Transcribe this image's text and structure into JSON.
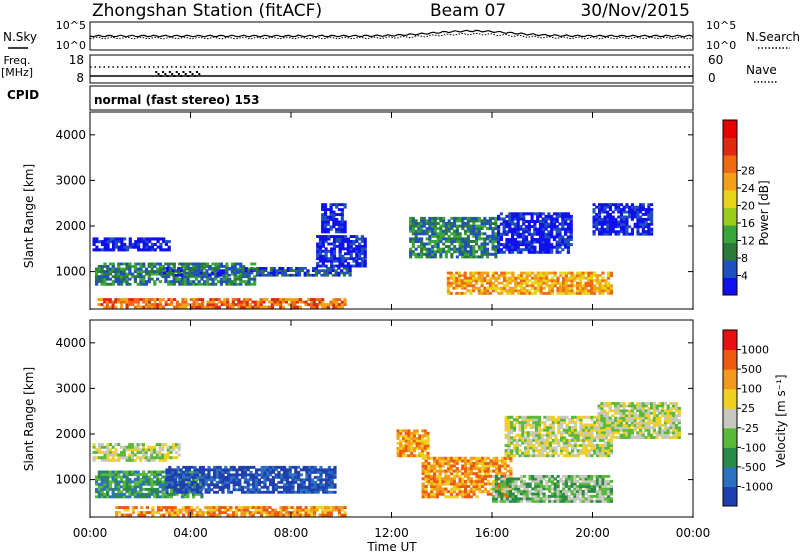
{
  "header": {
    "station_title": "Zhongshan Station (fitACF)",
    "beam_label": "Beam 07",
    "date": "30/Nov/2015"
  },
  "noise_panel": {
    "left_label": "N.Sky",
    "left_ticks": [
      "10^5",
      "10^0"
    ],
    "right_ticks": [
      "10^5",
      "10^0"
    ],
    "right_label": "N.Search"
  },
  "freq_panel": {
    "left_label_line1": "Freq.",
    "left_label_line2": "[MHz]",
    "left_ticks": [
      "18",
      "8"
    ],
    "right_ticks": [
      "60",
      "0"
    ],
    "right_label": "Nave"
  },
  "cpid_panel": {
    "label": "CPID",
    "text": "normal (fast stereo) 153"
  },
  "time_axis": {
    "tick_labels": [
      "00:00",
      "04:00",
      "08:00",
      "12:00",
      "16:00",
      "20:00",
      "00:00"
    ],
    "xlabel": "Time UT"
  },
  "chart_data": [
    {
      "type": "heatmap",
      "title": "Power",
      "xlabel": "",
      "ylabel": "Slant Range [km]",
      "ytick_labels": [
        "1000",
        "2000",
        "3000",
        "4000"
      ],
      "ylim": [
        180,
        4500
      ],
      "xlim": [
        0,
        24
      ],
      "colorbar": {
        "label": "Power [dB]",
        "tick_labels": [
          "4",
          "8",
          "12",
          "16",
          "20",
          "24",
          "28"
        ],
        "colors": [
          "#1010ee",
          "#2050c0",
          "#2c7a3a",
          "#3aa53a",
          "#9ccc1e",
          "#e8d418",
          "#f2a017",
          "#ee6a10",
          "#e02a10",
          "#e80000"
        ]
      },
      "echo_regions": [
        {
          "t_start": 0.1,
          "t_end": 3.2,
          "r_start": 1450,
          "r_end": 1750,
          "level": 0
        },
        {
          "t_start": 0.2,
          "t_end": 6.6,
          "r_start": 700,
          "r_end": 1200,
          "level": 2
        },
        {
          "t_start": 0.3,
          "t_end": 10.2,
          "r_start": 200,
          "r_end": 420,
          "level": 7
        },
        {
          "t_start": 2.8,
          "t_end": 10.4,
          "r_start": 900,
          "r_end": 1100,
          "level": 1
        },
        {
          "t_start": 9.0,
          "t_end": 11.0,
          "r_start": 1100,
          "r_end": 1800,
          "level": 0
        },
        {
          "t_start": 9.2,
          "t_end": 10.2,
          "r_start": 1850,
          "r_end": 2500,
          "level": 0
        },
        {
          "t_start": 12.7,
          "t_end": 16.2,
          "r_start": 1300,
          "r_end": 2200,
          "level": 2
        },
        {
          "t_start": 14.2,
          "t_end": 20.8,
          "r_start": 500,
          "r_end": 1000,
          "level": 6
        },
        {
          "t_start": 16.2,
          "t_end": 19.2,
          "r_start": 1400,
          "r_end": 2300,
          "level": 0
        },
        {
          "t_start": 20.0,
          "t_end": 22.4,
          "r_start": 1800,
          "r_end": 2500,
          "level": 0
        }
      ]
    },
    {
      "type": "heatmap",
      "title": "Velocity",
      "xlabel": "Time UT",
      "ylabel": "Slant Range [km]",
      "ytick_labels": [
        "1000",
        "2000",
        "3000",
        "4000"
      ],
      "ylim": [
        180,
        4500
      ],
      "xlim": [
        0,
        24
      ],
      "colorbar": {
        "label": "Velocity [m s⁻¹]",
        "tick_labels": [
          "1000",
          "500",
          "100",
          "25",
          "-25",
          "-100",
          "-500",
          "-1000"
        ],
        "colors": [
          "#2040b0",
          "#2c70c0",
          "#2a8a4a",
          "#5ab83a",
          "#c8c8c0",
          "#f0d020",
          "#f29a20",
          "#ee5a10",
          "#e81010"
        ]
      },
      "echo_regions": [
        {
          "t_start": 0.1,
          "t_end": 3.6,
          "r_start": 1400,
          "r_end": 1800,
          "level": 4
        },
        {
          "t_start": 0.2,
          "t_end": 4.5,
          "r_start": 600,
          "r_end": 1200,
          "level": 2
        },
        {
          "t_start": 1.0,
          "t_end": 10.2,
          "r_start": 200,
          "r_end": 420,
          "level": 6
        },
        {
          "t_start": 3.0,
          "t_end": 9.8,
          "r_start": 700,
          "r_end": 1300,
          "level": 0
        },
        {
          "t_start": 12.2,
          "t_end": 13.5,
          "r_start": 1500,
          "r_end": 2100,
          "level": 6
        },
        {
          "t_start": 13.2,
          "t_end": 16.8,
          "r_start": 600,
          "r_end": 1500,
          "level": 6
        },
        {
          "t_start": 16.0,
          "t_end": 20.8,
          "r_start": 500,
          "r_end": 1100,
          "level": 3
        },
        {
          "t_start": 16.5,
          "t_end": 20.8,
          "r_start": 1500,
          "r_end": 2400,
          "level": 4
        },
        {
          "t_start": 20.2,
          "t_end": 23.5,
          "r_start": 1900,
          "r_end": 2700,
          "level": 4
        }
      ]
    }
  ]
}
